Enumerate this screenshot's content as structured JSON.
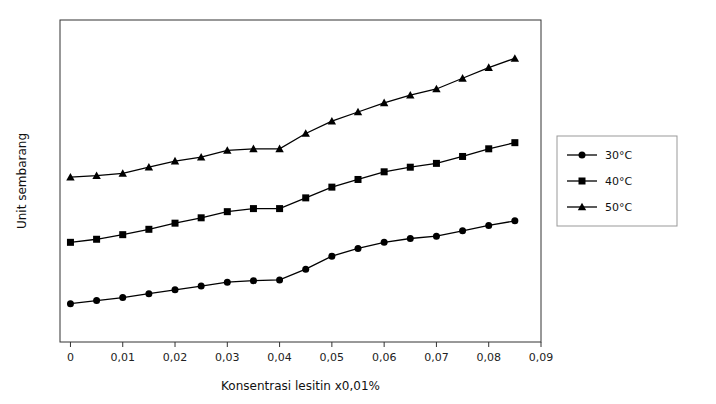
{
  "chart_data": {
    "type": "line",
    "xlabel": "Konsentrasi lesitin x0,01%",
    "ylabel": "Unit sembarang",
    "x": [
      0,
      0.005,
      0.01,
      0.015,
      0.02,
      0.025,
      0.03,
      0.035,
      0.04,
      0.045,
      0.05,
      0.055,
      0.06,
      0.065,
      0.07,
      0.075,
      0.08,
      0.085
    ],
    "series": [
      {
        "name": "30°C",
        "color": "#000000",
        "marker": "circle",
        "values": [
          0.5,
          0.54,
          0.58,
          0.63,
          0.68,
          0.73,
          0.78,
          0.8,
          0.81,
          0.95,
          1.12,
          1.22,
          1.3,
          1.35,
          1.38,
          1.45,
          1.52,
          1.58
        ]
      },
      {
        "name": "40°C",
        "color": "#000000",
        "marker": "square",
        "values": [
          1.3,
          1.34,
          1.4,
          1.47,
          1.55,
          1.62,
          1.7,
          1.74,
          1.74,
          1.88,
          2.02,
          2.12,
          2.22,
          2.28,
          2.33,
          2.42,
          2.52,
          2.6
        ]
      },
      {
        "name": "50°C",
        "color": "#000000",
        "marker": "triangle",
        "values": [
          2.15,
          2.17,
          2.2,
          2.28,
          2.36,
          2.41,
          2.5,
          2.52,
          2.52,
          2.72,
          2.88,
          3.0,
          3.12,
          3.22,
          3.3,
          3.44,
          3.58,
          3.7
        ]
      }
    ],
    "xlim": [
      -0.002,
      0.09
    ],
    "ylim": [
      0.0,
      4.2
    ],
    "xticks": [
      0,
      {
        "value": 0.01,
        "label": "0,01"
      },
      {
        "value": 0.02,
        "label": "0,02"
      },
      {
        "value": 0.03,
        "label": "0,03"
      },
      {
        "value": 0.04,
        "label": "0,04"
      },
      {
        "value": 0.05,
        "label": "0,05"
      },
      {
        "value": 0.06,
        "label": "0,06"
      },
      {
        "value": 0.07,
        "label": "0,07"
      },
      {
        "value": 0.08,
        "label": "0,08"
      },
      {
        "value": 0.09,
        "label": "0,09"
      }
    ],
    "tick_labels": "x",
    "grid": false,
    "legend": "right"
  }
}
